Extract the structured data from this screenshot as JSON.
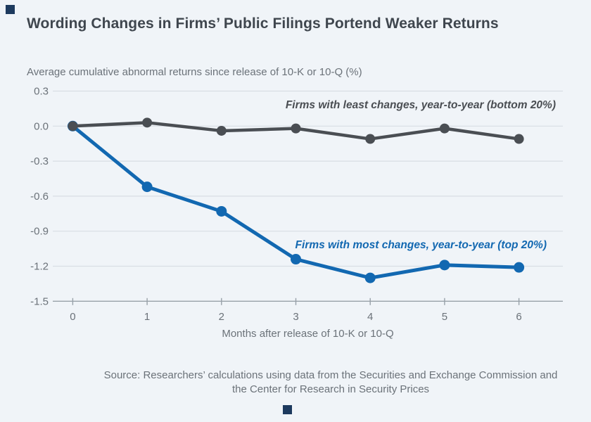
{
  "page": {
    "background_color": "#f0f4f8",
    "title_color": "#3f464e",
    "text_color": "#6b7279",
    "corner_mark_color": "#1d3a5e"
  },
  "chart_data": {
    "type": "line",
    "title": "Wording Changes in Firms’ Public Filings Portend Weaker Returns",
    "subtitle": "Average cumulative abnormal returns since release of 10-K or 10-Q (%)",
    "xlabel": "Months after release of 10-K or 10-Q",
    "ylabel": "Average cumulative abnormal returns since release of 10-K or 10-Q (%)",
    "x": [
      0,
      1,
      2,
      3,
      4,
      5,
      6
    ],
    "xtick_labels": [
      "0",
      "1",
      "2",
      "3",
      "4",
      "5",
      "6"
    ],
    "ytick_values": [
      0.3,
      0.0,
      -0.3,
      -0.6,
      -0.9,
      -1.2,
      -1.5
    ],
    "ytick_labels": [
      "0.3",
      "0.0",
      "-0.3",
      "-0.6",
      "-0.9",
      "-1.2",
      "-1.5"
    ],
    "ylim": [
      -1.5,
      0.3
    ],
    "grid": "horizontal",
    "legend_position": "inline-above-lines",
    "series": [
      {
        "name": "Firms with least changes, year-to-year (bottom 20%)",
        "color": "#4a4e53",
        "values": [
          0.0,
          0.03,
          -0.04,
          -0.02,
          -0.11,
          -0.02,
          -0.11
        ]
      },
      {
        "name": "Firms with most changes, year-to-year (top 20%)",
        "color": "#1268b1",
        "values": [
          0.0,
          -0.52,
          -0.73,
          -1.14,
          -1.3,
          -1.19,
          -1.21
        ]
      }
    ],
    "colors": {
      "grid": "#d8dde3",
      "axis": "#98a1a9",
      "tick_text": "#6b7279"
    },
    "source_line1": "Source: Researchers’ calculations using data from the Securities and Exchange Commission and",
    "source_line2": "the Center for Research in Security Prices"
  }
}
